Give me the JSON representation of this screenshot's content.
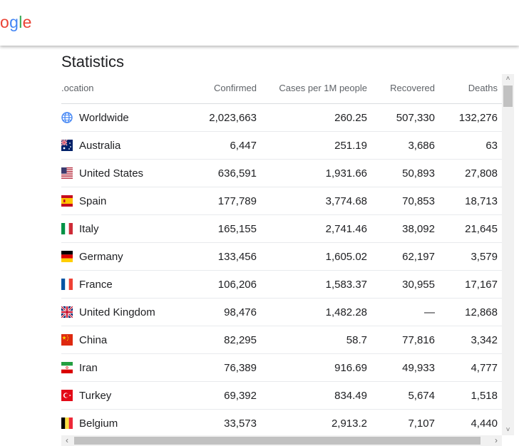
{
  "logo": {
    "l1": "o",
    "l2": "g",
    "l3": "l",
    "l4": "e"
  },
  "title": "Statistics",
  "columns": {
    "location": ".ocation",
    "confirmed": "Confirmed",
    "per_million": "Cases per 1M people",
    "recovered": "Recovered",
    "deaths": "Deaths"
  },
  "rows": [
    {
      "location": "Worldwide",
      "confirmed": "2,023,663",
      "per_million": "260.25",
      "recovered": "507,330",
      "deaths": "132,276",
      "flag": "globe-icon"
    },
    {
      "location": "Australia",
      "confirmed": "6,447",
      "per_million": "251.19",
      "recovered": "3,686",
      "deaths": "63",
      "flag": "australia-flag-icon"
    },
    {
      "location": "United States",
      "confirmed": "636,591",
      "per_million": "1,931.66",
      "recovered": "50,893",
      "deaths": "27,808",
      "flag": "us-flag-icon"
    },
    {
      "location": "Spain",
      "confirmed": "177,789",
      "per_million": "3,774.68",
      "recovered": "70,853",
      "deaths": "18,713",
      "flag": "spain-flag-icon"
    },
    {
      "location": "Italy",
      "confirmed": "165,155",
      "per_million": "2,741.46",
      "recovered": "38,092",
      "deaths": "21,645",
      "flag": "italy-flag-icon"
    },
    {
      "location": "Germany",
      "confirmed": "133,456",
      "per_million": "1,605.02",
      "recovered": "62,197",
      "deaths": "3,579",
      "flag": "germany-flag-icon"
    },
    {
      "location": "France",
      "confirmed": "106,206",
      "per_million": "1,583.37",
      "recovered": "30,955",
      "deaths": "17,167",
      "flag": "france-flag-icon"
    },
    {
      "location": "United Kingdom",
      "confirmed": "98,476",
      "per_million": "1,482.28",
      "recovered": "—",
      "deaths": "12,868",
      "flag": "uk-flag-icon"
    },
    {
      "location": "China",
      "confirmed": "82,295",
      "per_million": "58.7",
      "recovered": "77,816",
      "deaths": "3,342",
      "flag": "china-flag-icon"
    },
    {
      "location": "Iran",
      "confirmed": "76,389",
      "per_million": "916.69",
      "recovered": "49,933",
      "deaths": "4,777",
      "flag": "iran-flag-icon"
    },
    {
      "location": "Turkey",
      "confirmed": "69,392",
      "per_million": "834.49",
      "recovered": "5,674",
      "deaths": "1,518",
      "flag": "turkey-flag-icon"
    },
    {
      "location": "Belgium",
      "confirmed": "33,573",
      "per_million": "2,913.2",
      "recovered": "7,107",
      "deaths": "4,440",
      "flag": "belgium-flag-icon"
    }
  ]
}
